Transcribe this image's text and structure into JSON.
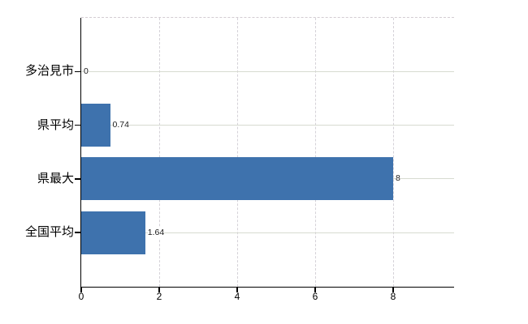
{
  "chart": {
    "title": "",
    "bar_color": "#3e72ad",
    "axis_color": "#000000",
    "grid_color_horizontal": "#d7dbd1",
    "grid_color_vertical": "#d5d2d8",
    "plot_border_color": "#d3ccd2",
    "label_color": "#000000",
    "value_label_color": "#1a1a1a",
    "background_color": "#ffffff"
  },
  "chart_data": {
    "type": "bar",
    "orientation": "horizontal",
    "title": "",
    "xlabel": "",
    "ylabel": "",
    "categories": [
      "多治見市",
      "県平均",
      "県最大",
      "全国平均"
    ],
    "values": [
      0,
      0.74,
      8,
      1.64
    ],
    "value_labels": [
      "0",
      "0.74",
      "8",
      "1.64"
    ],
    "x_ticks": [
      "0",
      "2",
      "4",
      "6",
      "8"
    ],
    "x_tick_values": [
      0,
      2,
      4,
      6,
      8
    ],
    "xlim": [
      0,
      9.56
    ],
    "grid": "on",
    "legend": "none"
  }
}
